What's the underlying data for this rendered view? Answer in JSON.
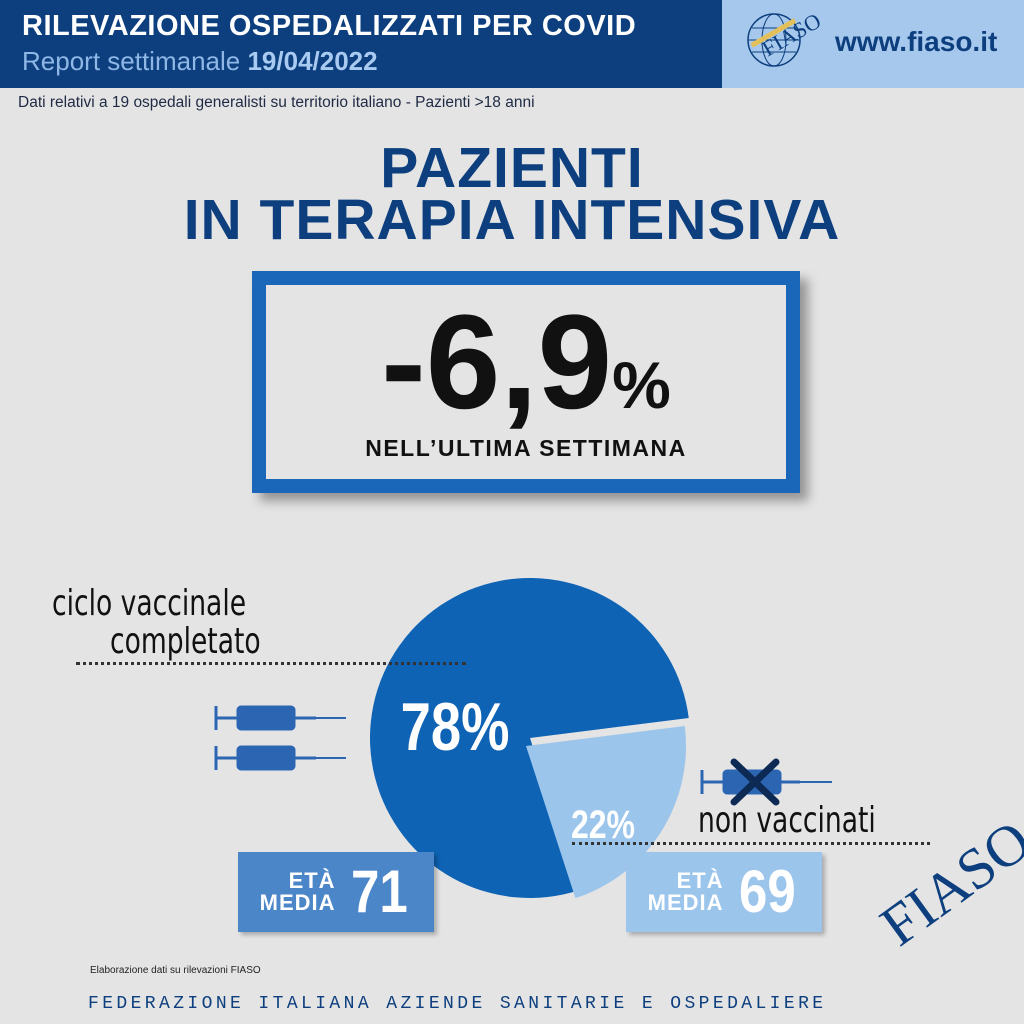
{
  "header": {
    "title": "RILEVAZIONE OSPEDALIZZATI PER COVID",
    "subtitle": "Report settimanale",
    "date": "19/04/2022",
    "website": "www.fiaso.it"
  },
  "note": "Dati relativi a 19 ospedali generalisti su territorio italiano - Pazienti >18 anni",
  "headline": [
    "PAZIENTI",
    "IN TERAPIA INTENSIVA"
  ],
  "kpi": {
    "value": "-6,9",
    "unit": "%",
    "caption": "NELL’ULTIMA SETTIMANA"
  },
  "chart_data": {
    "type": "pie",
    "slices": [
      {
        "label": "ciclo vaccinale completato",
        "value": 78,
        "display": "78%",
        "color": "#0e63b4"
      },
      {
        "label": "non vaccinati",
        "value": 22,
        "display": "22%",
        "color": "#9cc5ec"
      }
    ]
  },
  "labels": {
    "vaccinated_line1": "ciclo vaccinale",
    "vaccinated_line2": "completato",
    "unvaccinated": "non vaccinati"
  },
  "ages": {
    "label_line1": "ETÀ",
    "label_line2": "MEDIA",
    "vaccinated": "71",
    "unvaccinated": "69"
  },
  "source": "Elaborazione dati su rilevazioni FIASO",
  "footer": "FEDERAZIONE ITALIANA AZIENDE SANITARIE E OSPEDALIERE",
  "brand_mark": "FIASO",
  "logo_text": "FIASO",
  "colors": {
    "dark_blue": "#0d3f7f",
    "blue": "#0e63b4",
    "light_blue": "#9cc5ec",
    "background": "#e4e4e4"
  }
}
